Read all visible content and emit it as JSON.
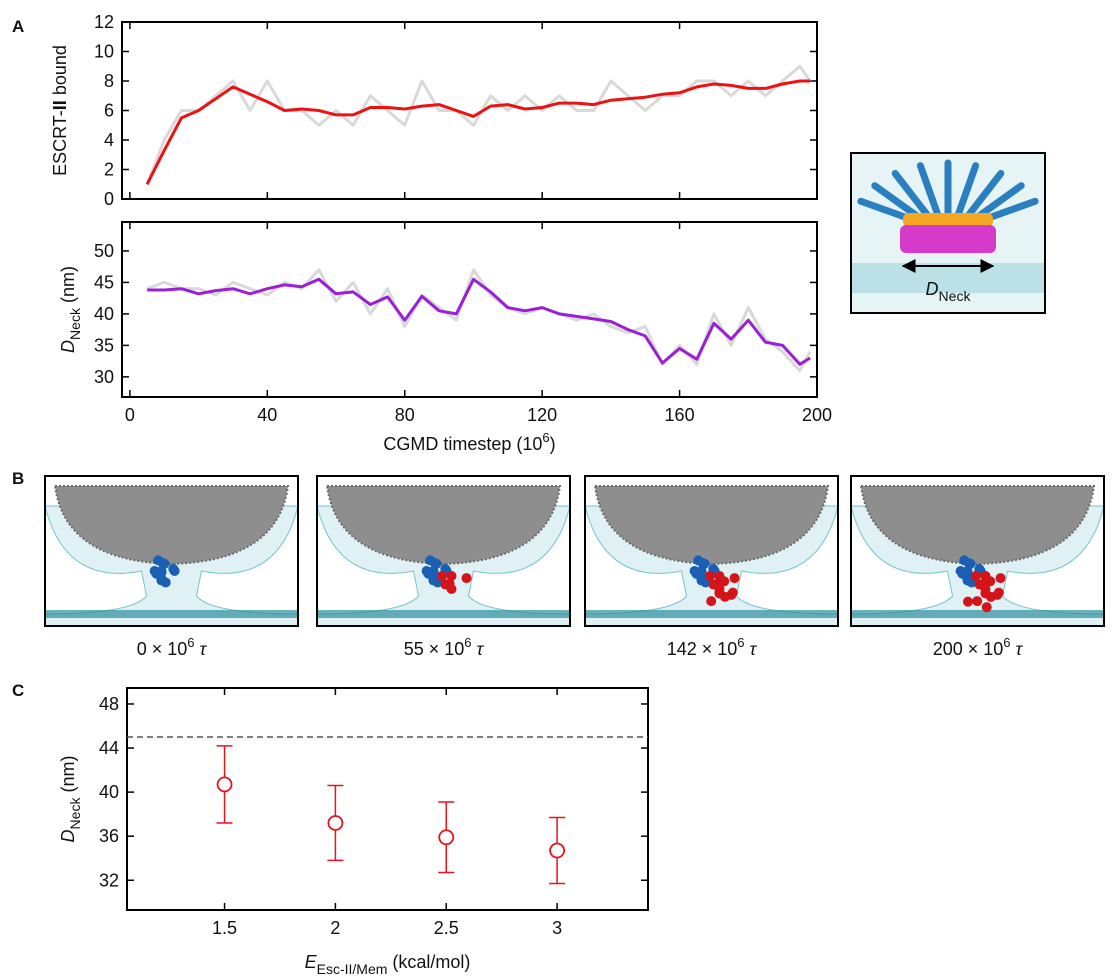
{
  "panel_labels": [
    "A",
    "B",
    "C"
  ],
  "chart_data": [
    {
      "type": "line",
      "ylabel": {
        "parts": [
          {
            "text": "ESCRT-",
            "style": "normal"
          },
          {
            "text": "II",
            "style": "bold"
          },
          {
            "text": " bound",
            "style": "normal"
          }
        ]
      },
      "x": [
        5,
        10,
        15,
        20,
        25,
        30,
        35,
        40,
        45,
        50,
        55,
        60,
        65,
        70,
        75,
        80,
        85,
        90,
        95,
        100,
        105,
        110,
        115,
        120,
        125,
        130,
        135,
        140,
        145,
        150,
        155,
        160,
        165,
        170,
        175,
        180,
        185,
        190,
        195,
        198
      ],
      "series": [
        {
          "color": "#d9d9d9",
          "values": [
            1,
            4,
            6,
            6,
            7,
            8,
            6,
            8,
            6,
            6,
            5,
            6,
            5,
            7,
            6,
            5,
            8,
            6,
            6,
            5,
            7,
            6,
            7,
            6,
            7,
            6,
            6,
            8,
            7,
            6,
            7,
            7,
            8,
            8,
            7,
            8,
            7,
            8,
            9,
            8
          ]
        },
        {
          "color": "#ee1111",
          "values": [
            1,
            3.3,
            5.5,
            6,
            6.8,
            7.6,
            7.1,
            6.6,
            6,
            6.1,
            6,
            5.7,
            5.7,
            6.2,
            6.2,
            6.1,
            6.3,
            6.4,
            6,
            5.6,
            6.3,
            6.4,
            6.1,
            6.2,
            6.5,
            6.5,
            6.4,
            6.7,
            6.8,
            6.9,
            7.1,
            7.2,
            7.6,
            7.8,
            7.7,
            7.5,
            7.5,
            7.8,
            8,
            8
          ]
        }
      ],
      "xlim": [
        -2.3,
        200
      ],
      "xticks": [
        0,
        40,
        80,
        120,
        160,
        200
      ],
      "ylim": [
        0,
        12
      ],
      "yticks": [
        0,
        2,
        4,
        6,
        8,
        10,
        12
      ]
    },
    {
      "type": "line",
      "ylabel": {
        "parts": [
          {
            "text": "D",
            "style": "italic"
          },
          {
            "text": "Neck",
            "style": "sub"
          },
          {
            "text": " (nm)",
            "style": "normal"
          }
        ]
      },
      "xlabel": {
        "parts": [
          {
            "text": "CGMD timestep (10",
            "style": "normal"
          },
          {
            "text": "6",
            "style": "sup"
          },
          {
            "text": ")",
            "style": "normal"
          }
        ]
      },
      "x": [
        5,
        10,
        15,
        20,
        25,
        30,
        35,
        40,
        45,
        50,
        55,
        60,
        65,
        70,
        75,
        80,
        85,
        90,
        95,
        100,
        105,
        110,
        115,
        120,
        125,
        130,
        135,
        140,
        145,
        150,
        155,
        160,
        165,
        170,
        175,
        180,
        185,
        190,
        195,
        198
      ],
      "series": [
        {
          "color": "#d9d9d9",
          "values": [
            44,
            45,
            44,
            44,
            43,
            45,
            44,
            43,
            45,
            44,
            47,
            42,
            45,
            40,
            44,
            38,
            43,
            41,
            39,
            47,
            43,
            41,
            40,
            41,
            40,
            39,
            40,
            38,
            37,
            38,
            32,
            35,
            32,
            40,
            35,
            41,
            36,
            34,
            31,
            34
          ]
        },
        {
          "color": "#9a1fd6",
          "values": [
            43.8,
            43.8,
            44,
            43.2,
            43.7,
            44,
            43.2,
            44,
            44.6,
            44.3,
            45.5,
            43.2,
            43.5,
            41.5,
            42.7,
            39,
            42.8,
            40.5,
            40,
            45.5,
            43.5,
            41,
            40.5,
            41,
            40,
            39.6,
            39.2,
            38.8,
            37.5,
            36.5,
            32.2,
            34.5,
            32.8,
            38.5,
            36,
            39,
            35.5,
            35,
            32,
            33
          ]
        }
      ],
      "xlim": [
        -2.3,
        200
      ],
      "xticks": [
        0,
        40,
        80,
        120,
        160,
        200
      ],
      "ylim": [
        26.8,
        54.6
      ],
      "yticks": [
        30,
        35,
        40,
        45,
        50
      ]
    },
    {
      "type": "scatter",
      "ylabel": {
        "parts": [
          {
            "text": "D",
            "style": "italic"
          },
          {
            "text": "Neck",
            "style": "sub"
          },
          {
            "text": " (nm)",
            "style": "normal"
          }
        ]
      },
      "xlabel": {
        "parts": [
          {
            "text": "E",
            "style": "italic"
          },
          {
            "text": "Esc-II/Mem",
            "style": "sub"
          },
          {
            "text": " (kcal/mol)",
            "style": "normal"
          }
        ]
      },
      "x": [
        1.5,
        2,
        2.5,
        3
      ],
      "values": [
        40.7,
        37.2,
        35.9,
        34.7
      ],
      "errors": [
        3.5,
        3.4,
        3.2,
        3.0
      ],
      "color": "#e8141b",
      "reference_line": 45,
      "xlim": [
        1.06,
        3.41
      ],
      "xticks": [
        1.5,
        2,
        2.5,
        3
      ],
      "ylim": [
        29.3,
        49.45
      ],
      "yticks": [
        32,
        36,
        40,
        44,
        48
      ]
    }
  ],
  "snapshots": [
    {
      "caption": {
        "parts": [
          {
            "text": "0 × 10",
            "style": "normal"
          },
          {
            "text": "6",
            "style": "sup"
          },
          {
            "text": " τ",
            "style": "italic"
          }
        ]
      }
    },
    {
      "caption": {
        "parts": [
          {
            "text": "55 × 10",
            "style": "normal"
          },
          {
            "text": "6",
            "style": "sup"
          },
          {
            "text": " τ",
            "style": "italic"
          }
        ]
      }
    },
    {
      "caption": {
        "parts": [
          {
            "text": "142 × 10",
            "style": "normal"
          },
          {
            "text": "6",
            "style": "sup"
          },
          {
            "text": " τ",
            "style": "italic"
          }
        ]
      }
    },
    {
      "caption": {
        "parts": [
          {
            "text": "200 × 10",
            "style": "normal"
          },
          {
            "text": "6",
            "style": "sup"
          },
          {
            "text": " τ",
            "style": "italic"
          }
        ]
      }
    }
  ],
  "inset": {
    "label": {
      "parts": [
        {
          "text": "D",
          "style": "italic"
        },
        {
          "text": "Neck",
          "style": "sub"
        }
      ]
    }
  }
}
